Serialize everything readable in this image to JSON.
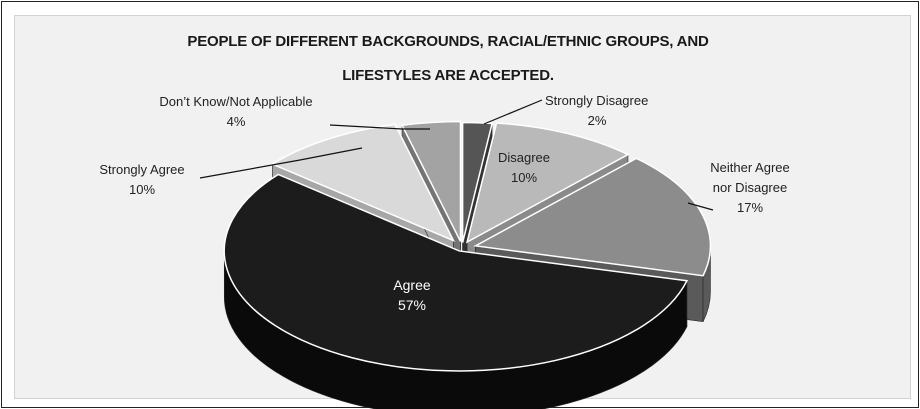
{
  "chart_data": {
    "type": "pie",
    "title_lines": [
      "PEOPLE OF DIFFERENT BACKGROUNDS, RACIAL/ETHNIC GROUPS, AND",
      "LIFESTYLES ARE ACCEPTED."
    ],
    "slices": [
      {
        "name_lines": [
          "Strongly Disagree"
        ],
        "value_label": "2%",
        "value": 2,
        "color": "#555555",
        "side": "#333333"
      },
      {
        "name_lines": [
          "Disagree"
        ],
        "value_label": "10%",
        "value": 10,
        "color": "#b9b9b9",
        "side": "#8a8a8a"
      },
      {
        "name_lines": [
          "Neither Agree",
          "nor Disagree"
        ],
        "value_label": "17%",
        "value": 17,
        "color": "#8c8c8c",
        "side": "#5a5a5a"
      },
      {
        "name_lines": [
          "Agree"
        ],
        "value_label": "57%",
        "value": 57,
        "color": "#1c1c1c",
        "side": "#0a0a0a"
      },
      {
        "name_lines": [
          "Strongly Agree"
        ],
        "value_label": "10%",
        "value": 10,
        "color": "#d9d9d9",
        "side": "#a7a7a7"
      },
      {
        "name_lines": [
          "Don’t Know/Not Applicable"
        ],
        "value_label": "4%",
        "value": 4,
        "color": "#a3a3a3",
        "side": "#747474"
      }
    ],
    "style": "3d-exploded-pie",
    "legend": "none"
  }
}
